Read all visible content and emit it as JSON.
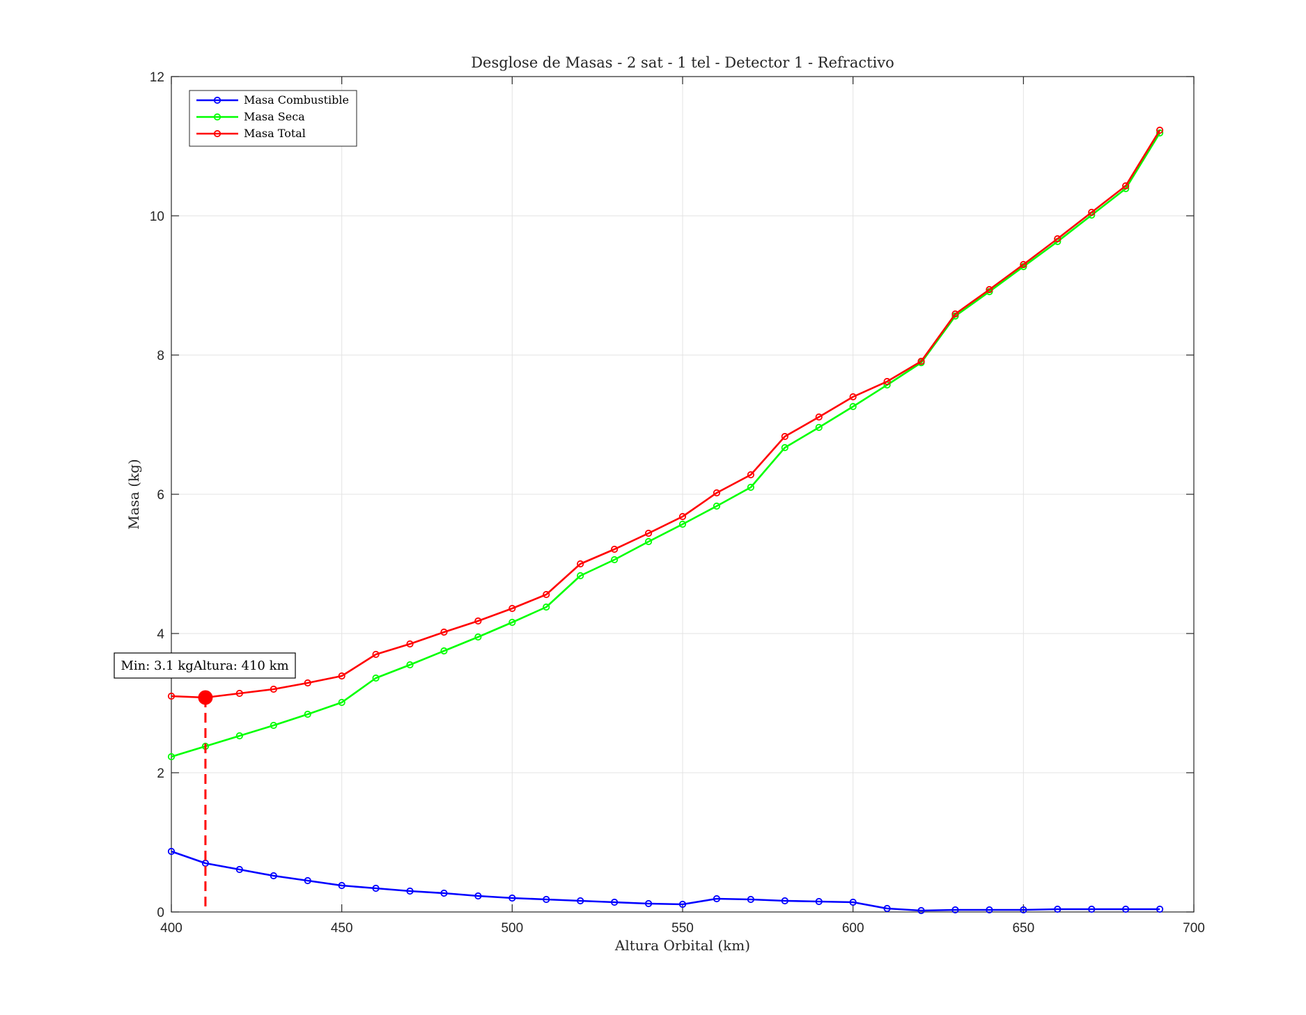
{
  "chart_data": {
    "type": "line",
    "title": "Desglose de Masas - 2 sat - 1 tel - Detector 1 - Refractivo",
    "xlabel": "Altura Orbital (km)",
    "ylabel": "Masa (kg)",
    "xlim": [
      400,
      700
    ],
    "ylim": [
      0,
      12
    ],
    "xticks": [
      400,
      450,
      500,
      550,
      600,
      650,
      700
    ],
    "yticks": [
      0,
      2,
      4,
      6,
      8,
      10,
      12
    ],
    "grid": true,
    "legend_position": "top-left",
    "x": [
      400,
      410,
      420,
      430,
      440,
      450,
      460,
      470,
      480,
      490,
      500,
      510,
      520,
      530,
      540,
      550,
      560,
      570,
      580,
      590,
      600,
      610,
      620,
      630,
      640,
      650,
      660,
      670,
      680,
      690
    ],
    "series": [
      {
        "name": "Masa Combustible",
        "color": "#0000ff",
        "values": [
          0.87,
          0.7,
          0.61,
          0.52,
          0.45,
          0.38,
          0.34,
          0.3,
          0.27,
          0.23,
          0.2,
          0.18,
          0.16,
          0.14,
          0.12,
          0.11,
          0.19,
          0.18,
          0.16,
          0.15,
          0.14,
          0.05,
          0.02,
          0.03,
          0.03,
          0.03,
          0.04,
          0.04,
          0.04,
          0.04
        ]
      },
      {
        "name": "Masa Seca",
        "color": "#00ff00",
        "values": [
          2.23,
          2.38,
          2.53,
          2.68,
          2.84,
          3.01,
          3.36,
          3.55,
          3.75,
          3.95,
          4.16,
          4.38,
          4.83,
          5.06,
          5.32,
          5.57,
          5.83,
          6.1,
          6.67,
          6.96,
          7.26,
          7.57,
          7.89,
          8.56,
          8.91,
          9.27,
          9.63,
          10.01,
          10.39,
          11.19
        ]
      },
      {
        "name": "Masa Total",
        "color": "#ff0000",
        "values": [
          3.1,
          3.08,
          3.14,
          3.2,
          3.29,
          3.39,
          3.7,
          3.85,
          4.02,
          4.18,
          4.36,
          4.56,
          5.0,
          5.21,
          5.44,
          5.68,
          6.02,
          6.28,
          6.83,
          7.11,
          7.4,
          7.62,
          7.91,
          8.59,
          8.94,
          9.3,
          9.67,
          10.05,
          10.43,
          11.23
        ]
      }
    ],
    "annotation": {
      "text": "Min: 3.1 kgAltura: 410 km",
      "x": 410,
      "y": 3.08,
      "color": "#ff0000"
    }
  }
}
